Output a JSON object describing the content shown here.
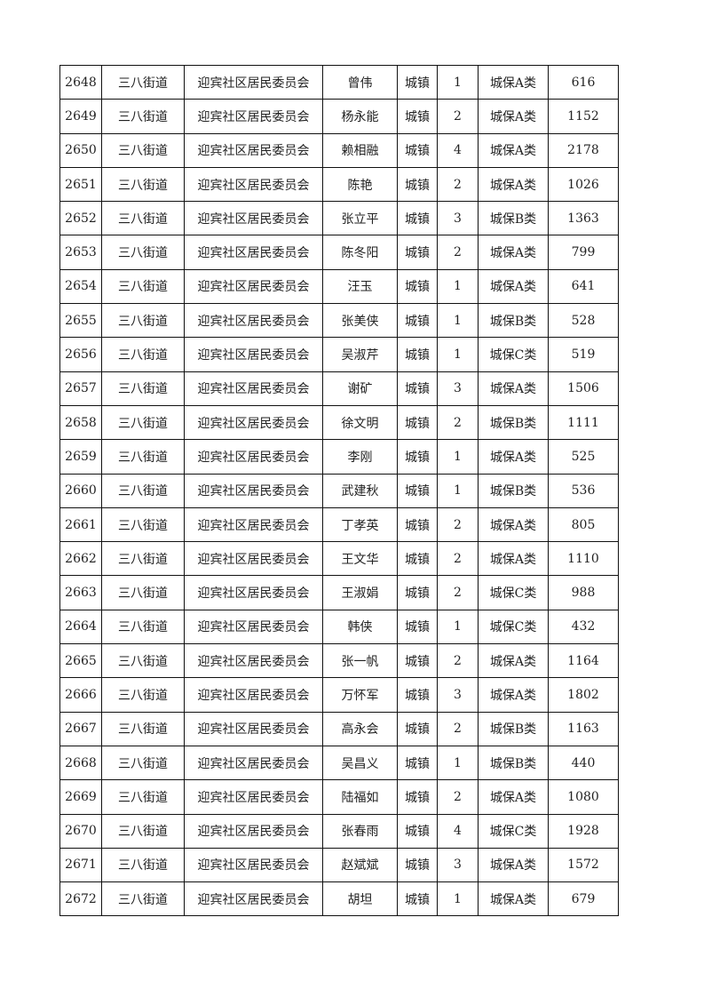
{
  "table": {
    "rows": [
      [
        "2648",
        "三八街道",
        "迎宾社区居民委员会",
        "曾伟",
        "城镇",
        "1",
        "城保A类",
        "616"
      ],
      [
        "2649",
        "三八街道",
        "迎宾社区居民委员会",
        "杨永能",
        "城镇",
        "2",
        "城保A类",
        "1152"
      ],
      [
        "2650",
        "三八街道",
        "迎宾社区居民委员会",
        "赖相融",
        "城镇",
        "4",
        "城保A类",
        "2178"
      ],
      [
        "2651",
        "三八街道",
        "迎宾社区居民委员会",
        "陈艳",
        "城镇",
        "2",
        "城保A类",
        "1026"
      ],
      [
        "2652",
        "三八街道",
        "迎宾社区居民委员会",
        "张立平",
        "城镇",
        "3",
        "城保B类",
        "1363"
      ],
      [
        "2653",
        "三八街道",
        "迎宾社区居民委员会",
        "陈冬阳",
        "城镇",
        "2",
        "城保A类",
        "799"
      ],
      [
        "2654",
        "三八街道",
        "迎宾社区居民委员会",
        "汪玉",
        "城镇",
        "1",
        "城保A类",
        "641"
      ],
      [
        "2655",
        "三八街道",
        "迎宾社区居民委员会",
        "张美侠",
        "城镇",
        "1",
        "城保B类",
        "528"
      ],
      [
        "2656",
        "三八街道",
        "迎宾社区居民委员会",
        "吴淑芹",
        "城镇",
        "1",
        "城保C类",
        "519"
      ],
      [
        "2657",
        "三八街道",
        "迎宾社区居民委员会",
        "谢矿",
        "城镇",
        "3",
        "城保A类",
        "1506"
      ],
      [
        "2658",
        "三八街道",
        "迎宾社区居民委员会",
        "徐文明",
        "城镇",
        "2",
        "城保B类",
        "1111"
      ],
      [
        "2659",
        "三八街道",
        "迎宾社区居民委员会",
        "李刚",
        "城镇",
        "1",
        "城保A类",
        "525"
      ],
      [
        "2660",
        "三八街道",
        "迎宾社区居民委员会",
        "武建秋",
        "城镇",
        "1",
        "城保B类",
        "536"
      ],
      [
        "2661",
        "三八街道",
        "迎宾社区居民委员会",
        "丁孝英",
        "城镇",
        "2",
        "城保A类",
        "805"
      ],
      [
        "2662",
        "三八街道",
        "迎宾社区居民委员会",
        "王文华",
        "城镇",
        "2",
        "城保A类",
        "1110"
      ],
      [
        "2663",
        "三八街道",
        "迎宾社区居民委员会",
        "王淑娟",
        "城镇",
        "2",
        "城保C类",
        "988"
      ],
      [
        "2664",
        "三八街道",
        "迎宾社区居民委员会",
        "韩侠",
        "城镇",
        "1",
        "城保C类",
        "432"
      ],
      [
        "2665",
        "三八街道",
        "迎宾社区居民委员会",
        "张一帆",
        "城镇",
        "2",
        "城保A类",
        "1164"
      ],
      [
        "2666",
        "三八街道",
        "迎宾社区居民委员会",
        "万怀军",
        "城镇",
        "3",
        "城保A类",
        "1802"
      ],
      [
        "2667",
        "三八街道",
        "迎宾社区居民委员会",
        "高永会",
        "城镇",
        "2",
        "城保B类",
        "1163"
      ],
      [
        "2668",
        "三八街道",
        "迎宾社区居民委员会",
        "吴昌义",
        "城镇",
        "1",
        "城保B类",
        "440"
      ],
      [
        "2669",
        "三八街道",
        "迎宾社区居民委员会",
        "陆福如",
        "城镇",
        "2",
        "城保A类",
        "1080"
      ],
      [
        "2670",
        "三八街道",
        "迎宾社区居民委员会",
        "张春雨",
        "城镇",
        "4",
        "城保C类",
        "1928"
      ],
      [
        "2671",
        "三八街道",
        "迎宾社区居民委员会",
        "赵斌斌",
        "城镇",
        "3",
        "城保A类",
        "1572"
      ],
      [
        "2672",
        "三八街道",
        "迎宾社区居民委员会",
        "胡坦",
        "城镇",
        "1",
        "城保A类",
        "679"
      ]
    ]
  }
}
